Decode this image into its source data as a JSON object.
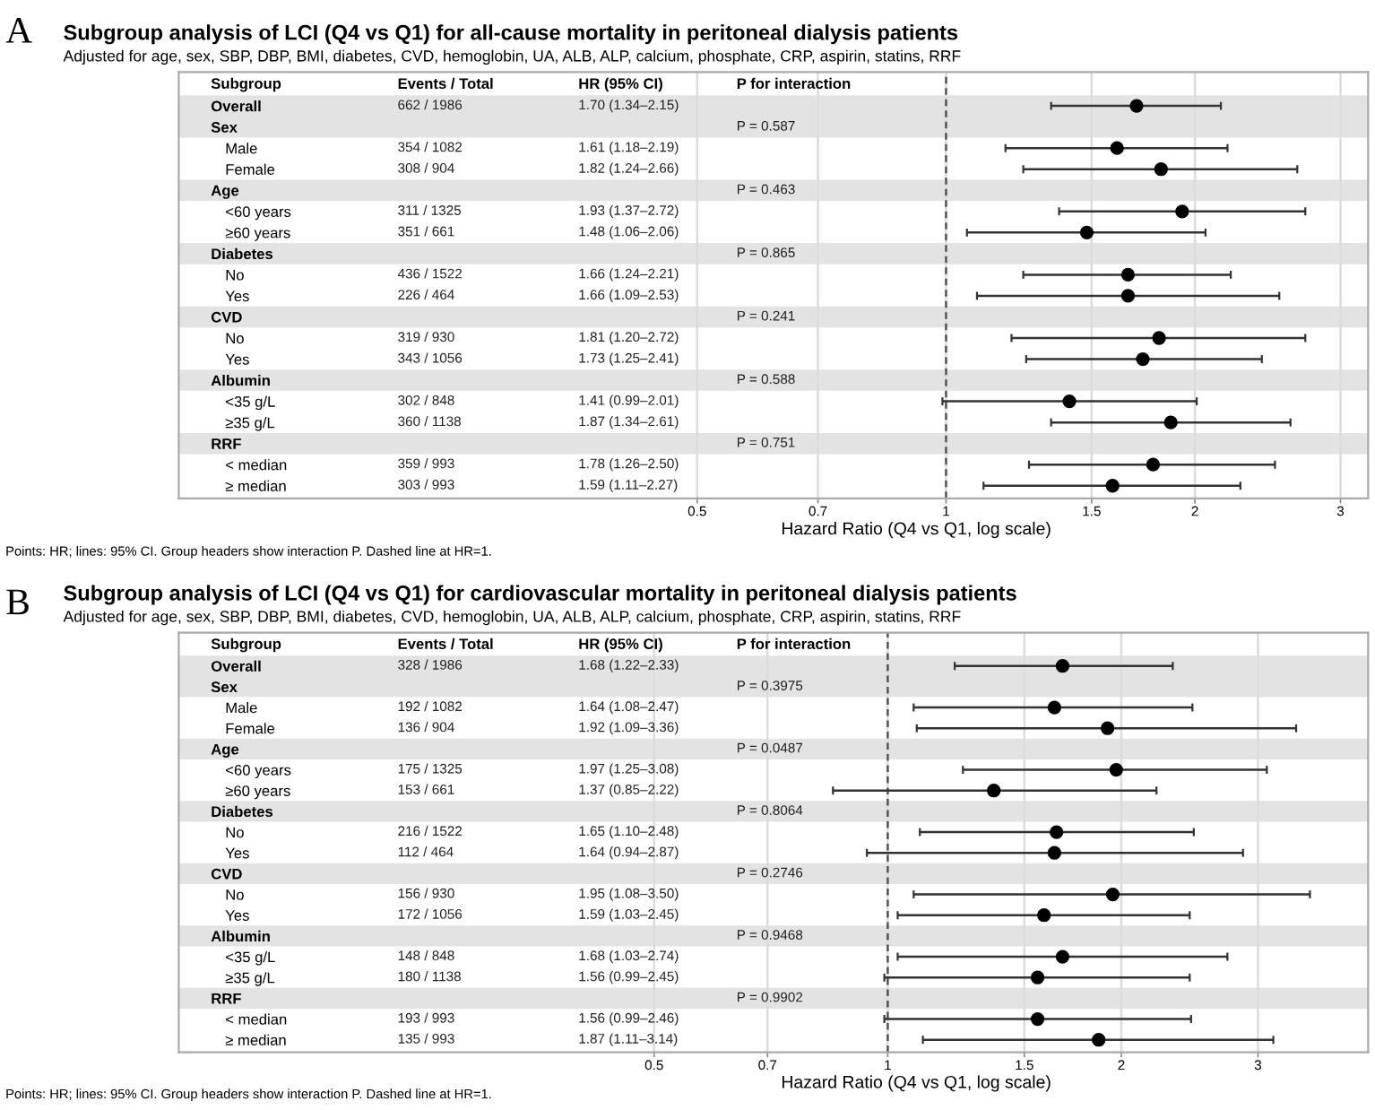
{
  "chart_data": [
    {
      "type": "scatter",
      "title": "Subgroup analysis of LCI (Q4 vs Q1) for all-cause mortality in peritoneal dialysis patients",
      "subtitle": "Adjusted for age, sex, SBP, DBP, BMI, diabetes, CVD, hemoglobin, UA, ALB, ALP, calcium, phosphate, CRP, aspirin, statins, RRF",
      "xlabel": "Hazard Ratio (Q4 vs Q1, log scale)",
      "categories": [
        "Overall",
        "Sex",
        "Male",
        "Female",
        "Age",
        "<60 years",
        "≥60 years",
        "Diabetes",
        "No",
        "Yes",
        "CVD",
        "No",
        "Yes",
        "Albumin",
        "<35 g/L",
        "≥35 g/L",
        "RRF",
        "< median",
        "≥ median"
      ],
      "values": [
        1.7,
        null,
        1.61,
        1.82,
        null,
        1.93,
        1.48,
        null,
        1.66,
        1.66,
        null,
        1.81,
        1.73,
        null,
        1.41,
        1.87,
        null,
        1.78,
        1.59
      ],
      "errors": [
        [
          1.34,
          2.15
        ],
        null,
        [
          1.18,
          2.19
        ],
        [
          1.24,
          2.66
        ],
        null,
        [
          1.37,
          2.72
        ],
        [
          1.06,
          2.06
        ],
        null,
        [
          1.24,
          2.21
        ],
        [
          1.09,
          2.53
        ],
        null,
        [
          1.2,
          2.72
        ],
        [
          1.25,
          2.41
        ],
        null,
        [
          0.99,
          2.01
        ],
        [
          1.34,
          2.61
        ],
        null,
        [
          1.26,
          2.5
        ],
        [
          1.11,
          2.27
        ]
      ],
      "color": "#000000",
      "marker": "circle",
      "log": "x",
      "grid": "x",
      "orientation": "horizontal",
      "xlim": [
        0.118,
        3.24
      ],
      "xticks": [
        0.5,
        0.7,
        1,
        1.5,
        2,
        3
      ],
      "ref_lines": [
        {
          "axis": "x",
          "value": 1,
          "line_style": "dashed",
          "color": "#555555"
        }
      ],
      "bands": [
        {
          "axis": "y",
          "from": "Overall",
          "to": "Sex",
          "color": "#e3e3e3"
        },
        {
          "axis": "y",
          "from": "Age",
          "to": "Age",
          "color": "#e3e3e3"
        },
        {
          "axis": "y",
          "from": "Diabetes",
          "to": "Diabetes",
          "color": "#e3e3e3"
        },
        {
          "axis": "y",
          "from": "CVD",
          "to": "CVD",
          "color": "#e3e3e3"
        },
        {
          "axis": "y",
          "from": "Albumin",
          "to": "Albumin",
          "color": "#e3e3e3"
        },
        {
          "axis": "y",
          "from": "RRF",
          "to": "RRF",
          "color": "#e3e3e3"
        }
      ],
      "annotations": [
        "A",
        "Subgroup",
        "Events / Total",
        "HR (95% CI)",
        "P for interaction",
        "662 / 1986",
        "1.70 (1.34–2.15)",
        "P = 0.587",
        "354 / 1082",
        "1.61 (1.18–2.19)",
        "308 / 904",
        "1.82 (1.24–2.66)",
        "P = 0.463",
        "311 / 1325",
        "1.93 (1.37–2.72)",
        "351 / 661",
        "1.48 (1.06–2.06)",
        "P = 0.865",
        "436 / 1522",
        "1.66 (1.24–2.21)",
        "226 / 464",
        "1.66 (1.09–2.53)",
        "P = 0.241",
        "319 / 930",
        "1.81 (1.20–2.72)",
        "343 / 1056",
        "1.73 (1.25–2.41)",
        "P = 0.588",
        "302 / 848",
        "1.41 (0.99–2.01)",
        "360 / 1138",
        "1.87 (1.34–2.61)",
        "P = 0.751",
        "359 / 993",
        "1.78 (1.26–2.50)",
        "303 / 993",
        "1.59 (1.11–2.27)",
        "Points: HR; lines: 95% CI. Group headers show interaction P. Dashed line at HR=1."
      ]
    },
    {
      "type": "scatter",
      "title": "Subgroup analysis of LCI (Q4 vs Q1) for cardiovascular mortality in peritoneal dialysis patients",
      "subtitle": "Adjusted for age, sex, SBP, DBP, BMI, diabetes, CVD, hemoglobin, UA, ALB, ALP, calcium, phosphate, CRP, aspirin, statins, RRF",
      "xlabel": "Hazard Ratio (Q4 vs Q1, log scale)",
      "categories": [
        "Overall",
        "Sex",
        "Male",
        "Female",
        "Age",
        "<60 years",
        "≥60 years",
        "Diabetes",
        "No",
        "Yes",
        "CVD",
        "No",
        "Yes",
        "Albumin",
        "<35 g/L",
        "≥35 g/L",
        "RRF",
        "< median",
        "≥ median"
      ],
      "values": [
        1.68,
        null,
        1.64,
        1.92,
        null,
        1.97,
        1.37,
        null,
        1.65,
        1.64,
        null,
        1.95,
        1.59,
        null,
        1.68,
        1.56,
        null,
        1.56,
        1.87
      ],
      "errors": [
        [
          1.22,
          2.33
        ],
        null,
        [
          1.08,
          2.47
        ],
        [
          1.09,
          3.36
        ],
        null,
        [
          1.25,
          3.08
        ],
        [
          0.85,
          2.22
        ],
        null,
        [
          1.1,
          2.48
        ],
        [
          0.94,
          2.87
        ],
        null,
        [
          1.08,
          3.5
        ],
        [
          1.03,
          2.45
        ],
        null,
        [
          1.03,
          2.74
        ],
        [
          0.99,
          2.45
        ],
        null,
        [
          0.99,
          2.46
        ],
        [
          1.11,
          3.14
        ]
      ],
      "color": "#000000",
      "marker": "circle",
      "log": "x",
      "grid": "x",
      "orientation": "horizontal",
      "xlim": [
        0.122,
        4.16
      ],
      "xticks": [
        0.5,
        0.7,
        1,
        1.5,
        2,
        3
      ],
      "ref_lines": [
        {
          "axis": "x",
          "value": 1,
          "line_style": "dashed",
          "color": "#555555"
        }
      ],
      "bands": [
        {
          "axis": "y",
          "from": "Overall",
          "to": "Sex",
          "color": "#e3e3e3"
        },
        {
          "axis": "y",
          "from": "Age",
          "to": "Age",
          "color": "#e3e3e3"
        },
        {
          "axis": "y",
          "from": "Diabetes",
          "to": "Diabetes",
          "color": "#e3e3e3"
        },
        {
          "axis": "y",
          "from": "CVD",
          "to": "CVD",
          "color": "#e3e3e3"
        },
        {
          "axis": "y",
          "from": "Albumin",
          "to": "Albumin",
          "color": "#e3e3e3"
        },
        {
          "axis": "y",
          "from": "RRF",
          "to": "RRF",
          "color": "#e3e3e3"
        }
      ],
      "annotations": [
        "B",
        "Subgroup",
        "Events / Total",
        "HR (95% CI)",
        "P for interaction",
        "328 / 1986",
        "1.68 (1.22–2.33)",
        "P = 0.3975",
        "192 / 1082",
        "1.64 (1.08–2.47)",
        "136 / 904",
        "1.92 (1.09–3.36)",
        "P = 0.0487",
        "175 / 1325",
        "1.97 (1.25–3.08)",
        "153 / 661",
        "1.37 (0.85–2.22)",
        "P = 0.8064",
        "216 / 1522",
        "1.65 (1.10–2.48)",
        "112 / 464",
        "1.64 (0.94–2.87)",
        "P = 0.2746",
        "156 / 930",
        "1.95 (1.08–3.50)",
        "172 / 1056",
        "1.59 (1.03–2.45)",
        "P = 0.9468",
        "148 / 848",
        "1.68 (1.03–2.74)",
        "180 / 1138",
        "1.56 (0.99–2.45)",
        "P = 0.9902",
        "193 / 993",
        "1.56 (0.99–2.46)",
        "135 / 993",
        "1.87 (1.11–3.14)",
        "Points: HR; lines: 95% CI. Group headers show interaction P. Dashed line at HR=1."
      ]
    }
  ]
}
